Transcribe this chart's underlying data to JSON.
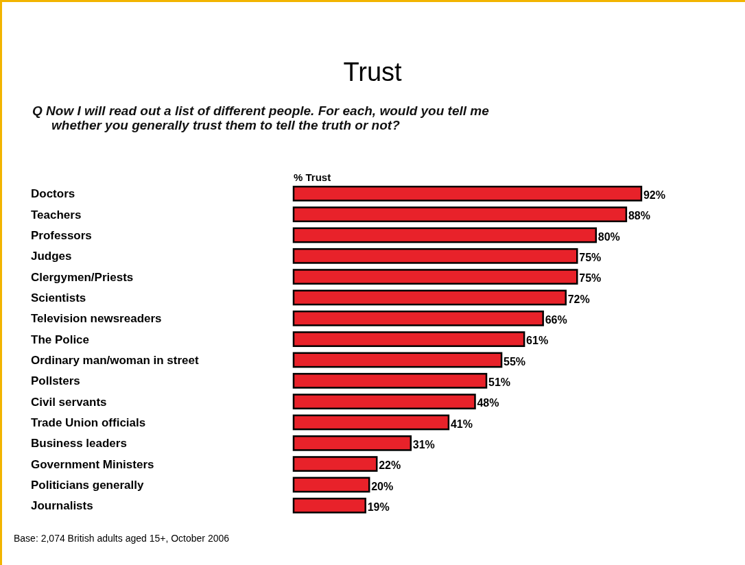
{
  "chart_data": {
    "type": "bar",
    "orientation": "horizontal",
    "title": "Trust",
    "subtitle": "Q Now I will read out a list of different people. For each, would you tell me whether you generally trust them to tell the truth or not?",
    "xlabel": "% Trust",
    "categories": [
      "Doctors",
      "Teachers",
      "Professors",
      "Judges",
      "Clergymen/Priests",
      "Scientists",
      "Television newsreaders",
      "The Police",
      "Ordinary man/woman in street",
      "Pollsters",
      "Civil servants",
      "Trade Union officials",
      "Business leaders",
      "Government Ministers",
      "Politicians generally",
      "Journalists"
    ],
    "values": [
      92,
      88,
      80,
      75,
      75,
      72,
      66,
      61,
      55,
      51,
      48,
      41,
      31,
      22,
      20,
      19
    ],
    "value_labels": [
      "92%",
      "88%",
      "80%",
      "75%",
      "75%",
      "72%",
      "66%",
      "61%",
      "55%",
      "51%",
      "48%",
      "41%",
      "31%",
      "22%",
      "20%",
      "19%"
    ],
    "color": "#e8222a",
    "annotations": [
      "Base: 2,074 British adults aged 15+, October 2006"
    ]
  }
}
